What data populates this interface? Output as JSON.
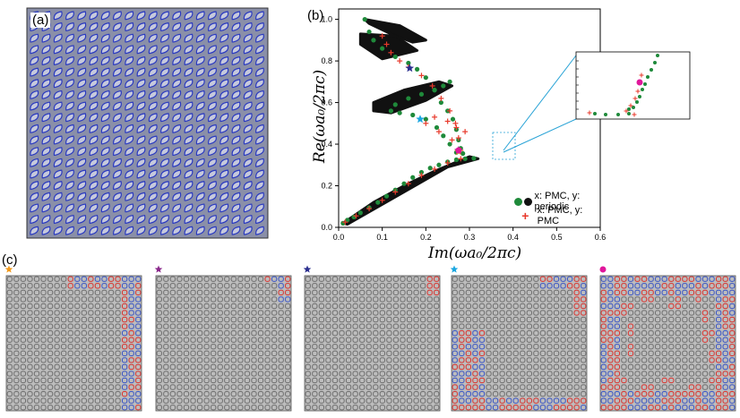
{
  "labels": {
    "a": "(a)",
    "b": "(b)",
    "c": "(c)"
  },
  "colors": {
    "lattice_bg": "#8a8fa8",
    "cell_fill": "#c6c9dc",
    "cell_edge": "#2a3ac0",
    "green": "#1f8a3a",
    "black": "#111111",
    "red": "#e8392b",
    "field_pos": "#d8332e",
    "field_neg": "#3a55c4",
    "field_bg": "#bdbdbd",
    "orange_star": "#f29a1c",
    "purple_star": "#8b2a8c",
    "navy_star": "#2b2f8f",
    "cyan_star": "#1aa6e0",
    "magenta_star": "#e0179b",
    "inset_line": "#29a3d6"
  },
  "chart_data": {
    "type": "scatter",
    "title": "",
    "xlabel": "Im(ωa₀/2πc)",
    "ylabel": "Re(ωa₀/2πc)",
    "xlim": [
      0,
      0.6
    ],
    "ylim": [
      0,
      1.05
    ],
    "xticks": [
      "0.0",
      "0.1",
      "0.2",
      "0.3",
      "0.4",
      "0.5",
      "0.6"
    ],
    "yticks": [
      "0.0",
      "0.2",
      "0.4",
      "0.6",
      "0.8",
      "1.0"
    ],
    "legend_position": "bottom-right",
    "series": [
      {
        "name": "x: PMC,  y: periodic",
        "marker": "circle",
        "colors": [
          "green",
          "black"
        ],
        "points": [
          [
            0.01,
            0.02
          ],
          [
            0.02,
            0.035
          ],
          [
            0.035,
            0.05
          ],
          [
            0.05,
            0.07
          ],
          [
            0.07,
            0.095
          ],
          [
            0.09,
            0.12
          ],
          [
            0.11,
            0.15
          ],
          [
            0.13,
            0.18
          ],
          [
            0.15,
            0.21
          ],
          [
            0.17,
            0.24
          ],
          [
            0.19,
            0.265
          ],
          [
            0.21,
            0.285
          ],
          [
            0.23,
            0.3
          ],
          [
            0.25,
            0.315
          ],
          [
            0.27,
            0.325
          ],
          [
            0.29,
            0.33
          ],
          [
            0.31,
            0.332
          ],
          [
            0.285,
            0.355
          ],
          [
            0.28,
            0.38
          ],
          [
            0.275,
            0.42
          ],
          [
            0.27,
            0.47
          ],
          [
            0.262,
            0.52
          ],
          [
            0.25,
            0.56
          ],
          [
            0.235,
            0.6
          ],
          [
            0.22,
            0.66
          ],
          [
            0.2,
            0.72
          ],
          [
            0.18,
            0.76
          ],
          [
            0.16,
            0.79
          ],
          [
            0.13,
            0.82
          ],
          [
            0.1,
            0.86
          ],
          [
            0.08,
            0.9
          ],
          [
            0.07,
            0.94
          ],
          [
            0.06,
            1.0
          ],
          [
            0.27,
            0.36
          ],
          [
            0.255,
            0.4
          ],
          [
            0.24,
            0.44
          ],
          [
            0.225,
            0.48
          ],
          [
            0.2,
            0.52
          ],
          [
            0.17,
            0.54
          ],
          [
            0.14,
            0.55
          ],
          [
            0.12,
            0.56
          ],
          [
            0.13,
            0.59
          ],
          [
            0.16,
            0.62
          ],
          [
            0.19,
            0.64
          ],
          [
            0.22,
            0.66
          ],
          [
            0.24,
            0.68
          ],
          [
            0.255,
            0.7
          ]
        ]
      },
      {
        "name": "x: PMC,  y: PMC",
        "marker": "plus",
        "colors": [
          "red"
        ],
        "points": [
          [
            0.015,
            0.025
          ],
          [
            0.04,
            0.055
          ],
          [
            0.07,
            0.09
          ],
          [
            0.1,
            0.13
          ],
          [
            0.13,
            0.17
          ],
          [
            0.16,
            0.21
          ],
          [
            0.19,
            0.25
          ],
          [
            0.22,
            0.28
          ],
          [
            0.25,
            0.31
          ],
          [
            0.28,
            0.33
          ],
          [
            0.28,
            0.37
          ],
          [
            0.275,
            0.43
          ],
          [
            0.268,
            0.5
          ],
          [
            0.255,
            0.56
          ],
          [
            0.235,
            0.62
          ],
          [
            0.215,
            0.68
          ],
          [
            0.19,
            0.73
          ],
          [
            0.16,
            0.77
          ],
          [
            0.14,
            0.8
          ],
          [
            0.12,
            0.84
          ],
          [
            0.11,
            0.88
          ],
          [
            0.1,
            0.92
          ],
          [
            0.26,
            0.42
          ],
          [
            0.23,
            0.46
          ],
          [
            0.2,
            0.5
          ],
          [
            0.22,
            0.53
          ],
          [
            0.25,
            0.51
          ],
          [
            0.27,
            0.48
          ],
          [
            0.29,
            0.46
          ]
        ]
      }
    ],
    "highlighted_points": [
      {
        "name": "orange star",
        "x": 0.275,
        "y": 0.365
      },
      {
        "name": "purple star",
        "x": 0.275,
        "y": 0.37
      },
      {
        "name": "navy star",
        "x": 0.163,
        "y": 0.765
      },
      {
        "name": "cyan star",
        "x": 0.187,
        "y": 0.52
      },
      {
        "name": "magenta dot",
        "x": 0.275,
        "y": 0.37
      }
    ]
  },
  "legend": {
    "green_black": "x: PMC,  y: periodic",
    "red": "x: PMC,  y: PMC"
  },
  "field_panels": [
    "orange",
    "purple",
    "navy",
    "cyan",
    "magenta"
  ]
}
